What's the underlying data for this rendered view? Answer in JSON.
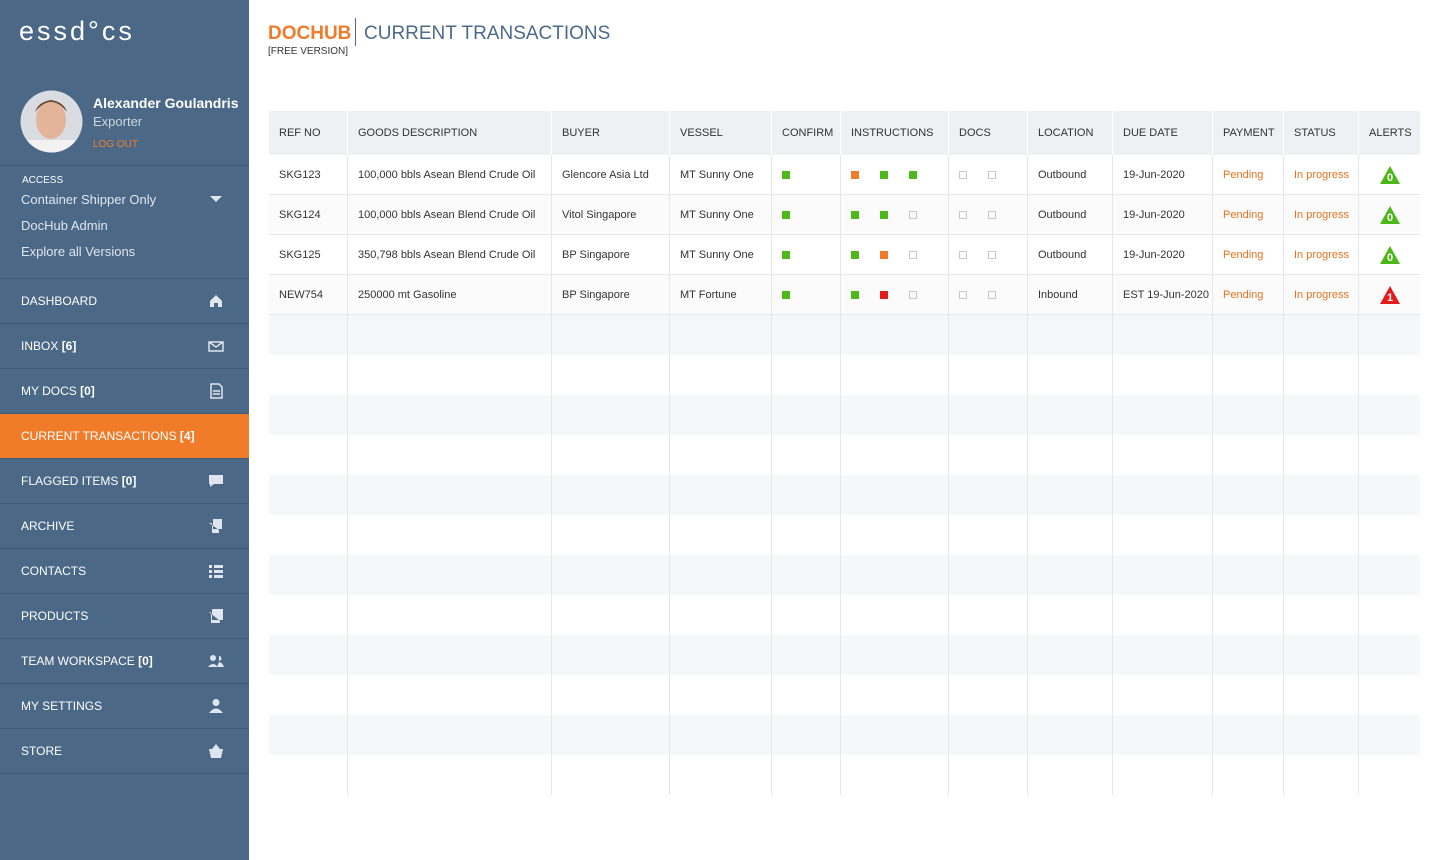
{
  "sidebar": {
    "logo": "essd°cs",
    "user": {
      "name": "Alexander Goulandris",
      "role": "Exporter",
      "logout": "LOG OUT"
    },
    "access": {
      "label": "ACCESS",
      "selected": "Container Shipper Only",
      "links": [
        "DocHub Admin",
        "Explore all Versions"
      ]
    },
    "nav": [
      {
        "label": "DASHBOARD"
      },
      {
        "label": "INBOX",
        "count": "[6]"
      },
      {
        "label": "MY DOCS",
        "count": "[0]"
      },
      {
        "label": "CURRENT TRANSACTIONS",
        "count": "[4]",
        "active": true
      },
      {
        "label": "FLAGGED ITEMS",
        "count": "[0]"
      },
      {
        "label": "ARCHIVE"
      },
      {
        "label": "CONTACTS"
      },
      {
        "label": "PRODUCTS"
      },
      {
        "label": "TEAM WORKSPACE",
        "count": "[0]"
      },
      {
        "label": "MY SETTINGS"
      },
      {
        "label": "STORE"
      }
    ]
  },
  "header": {
    "brand": "DOCHUB",
    "title": "CURRENT TRANSACTIONS",
    "version": "[FREE VERSION]"
  },
  "table": {
    "columns": [
      "REF NO",
      "GOODS DESCRIPTION",
      "BUYER",
      "VESSEL",
      "CONFIRM",
      "INSTRUCTIONS",
      "DOCS",
      "LOCATION",
      "DUE DATE",
      "PAYMENT",
      "STATUS",
      "ALERTS"
    ],
    "rows": [
      {
        "ref": "SKG123",
        "goods": "100,000 bbls Asean Blend Crude Oil",
        "buyer": "Glencore Asia Ltd",
        "vessel": "MT Sunny One",
        "confirm": [
          "#4cb81c"
        ],
        "instructions": [
          "#f07c2a",
          "#4cb81c",
          "#4cb81c"
        ],
        "docs": [
          null,
          null
        ],
        "location": "Outbound",
        "due": "19-Jun-2020",
        "payment": "Pending",
        "status": "In progress",
        "alert": {
          "count": 0,
          "color": "#4cb81c"
        }
      },
      {
        "ref": "SKG124",
        "goods": "100,000 bbls Asean Blend Crude Oil",
        "buyer": "Vitol Singapore",
        "vessel": "MT Sunny One",
        "confirm": [
          "#4cb81c"
        ],
        "instructions": [
          "#4cb81c",
          "#4cb81c",
          null
        ],
        "docs": [
          null,
          null
        ],
        "location": "Outbound",
        "due": "19-Jun-2020",
        "payment": "Pending",
        "status": "In progress",
        "alert": {
          "count": 0,
          "color": "#4cb81c"
        }
      },
      {
        "ref": "SKG125",
        "goods": "350,798 bbls Asean Blend Crude Oil",
        "buyer": "BP Singapore",
        "vessel": "MT Sunny One",
        "confirm": [
          "#4cb81c"
        ],
        "instructions": [
          "#4cb81c",
          "#f07c2a",
          null
        ],
        "docs": [
          null,
          null
        ],
        "location": "Outbound",
        "due": "19-Jun-2020",
        "payment": "Pending",
        "status": "In progress",
        "alert": {
          "count": 0,
          "color": "#4cb81c"
        }
      },
      {
        "ref": "NEW754",
        "goods": "250000 mt Gasoline",
        "buyer": "BP Singapore",
        "vessel": "MT Fortune",
        "confirm": [
          "#4cb81c"
        ],
        "instructions": [
          "#4cb81c",
          "#e31b1b",
          null
        ],
        "docs": [
          null,
          null
        ],
        "location": "Inbound",
        "due": "EST 19-Jun-2020",
        "payment": "Pending",
        "status": "In progress",
        "alert": {
          "count": 1,
          "color": "#e31b1b"
        }
      }
    ]
  }
}
